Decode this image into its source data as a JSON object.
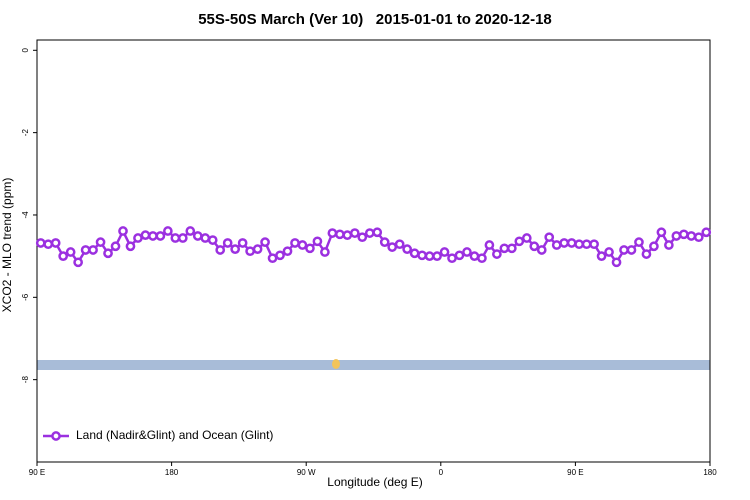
{
  "chart_data": {
    "type": "line",
    "title": "55S-50S March (Ver 10)   2015-01-01 to 2020-12-18",
    "x_label": "Longitude (deg E)",
    "y_label": "XCO2 - MLO trend (ppm)",
    "xlim": [
      90,
      540
    ],
    "ylim": [
      -10,
      0.25
    ],
    "xticks": [
      {
        "value": 90,
        "label": "90 E"
      },
      {
        "value": 180,
        "label": "180"
      },
      {
        "value": 270,
        "label": "90 W"
      },
      {
        "value": 360,
        "label": "0"
      },
      {
        "value": 450,
        "label": "90 E"
      },
      {
        "value": 540,
        "label": "180"
      }
    ],
    "yticks": [
      0,
      -2,
      -4,
      -6,
      -8
    ],
    "legend": "bottom-left",
    "series": [
      {
        "name": "Land (Nadir&Glint) and Ocean (Glint)",
        "color": "#9b30e0",
        "x": [
          92.5,
          97.5,
          102.5,
          107.5,
          112.5,
          117.5,
          122.5,
          127.5,
          132.5,
          137.5,
          142.5,
          147.5,
          152.5,
          157.5,
          162.5,
          167.5,
          172.5,
          177.5,
          182.5,
          187.5,
          192.5,
          197.5,
          202.5,
          207.5,
          212.5,
          217.5,
          222.5,
          227.5,
          232.5,
          237.5,
          242.5,
          247.5,
          252.5,
          257.5,
          262.5,
          267.5,
          272.5,
          277.5,
          282.5,
          287.5,
          292.5,
          297.5,
          302.5,
          307.5,
          312.5,
          317.5,
          322.5,
          327.5,
          332.5,
          337.5,
          342.5,
          347.5,
          352.5,
          357.5,
          362.5,
          367.5,
          372.5,
          377.5,
          382.5,
          387.5,
          392.5,
          397.5,
          402.5,
          407.5,
          412.5,
          417.5,
          422.5,
          427.5,
          432.5,
          437.5,
          442.5,
          447.5,
          452.5,
          457.5,
          462.5,
          467.5,
          472.5,
          477.5,
          482.5,
          487.5,
          492.5,
          497.5,
          502.5,
          507.5,
          512.5,
          517.5,
          522.5,
          527.5,
          532.5,
          537.5
        ],
        "values": [
          -4.68,
          -4.71,
          -4.68,
          -5.0,
          -4.9,
          -5.15,
          -4.85,
          -4.85,
          -4.66,
          -4.93,
          -4.76,
          -4.39,
          -4.76,
          -4.56,
          -4.49,
          -4.51,
          -4.51,
          -4.39,
          -4.56,
          -4.56,
          -4.39,
          -4.51,
          -4.56,
          -4.61,
          -4.85,
          -4.68,
          -4.83,
          -4.68,
          -4.88,
          -4.83,
          -4.66,
          -5.05,
          -4.98,
          -4.88,
          -4.68,
          -4.73,
          -4.81,
          -4.64,
          -4.9,
          -4.44,
          -4.47,
          -4.49,
          -4.44,
          -4.54,
          -4.44,
          -4.42,
          -4.66,
          -4.78,
          -4.71,
          -4.83,
          -4.93,
          -4.98,
          -5.0,
          -5.0,
          -4.9,
          -5.05,
          -4.98,
          -4.9,
          -5.0,
          -5.05,
          -4.73,
          -4.95,
          -4.81,
          -4.81,
          -4.64,
          -4.56,
          -4.76,
          -4.85,
          -4.54,
          -4.73,
          -4.68,
          -4.68,
          -4.71,
          -4.71,
          -4.71,
          -5.0,
          -4.9,
          -5.15,
          -4.85,
          -4.85,
          -4.66,
          -4.95,
          -4.76,
          -4.42,
          -4.73,
          -4.51,
          -4.47,
          -4.51,
          -4.54,
          -4.42
        ]
      }
    ]
  }
}
